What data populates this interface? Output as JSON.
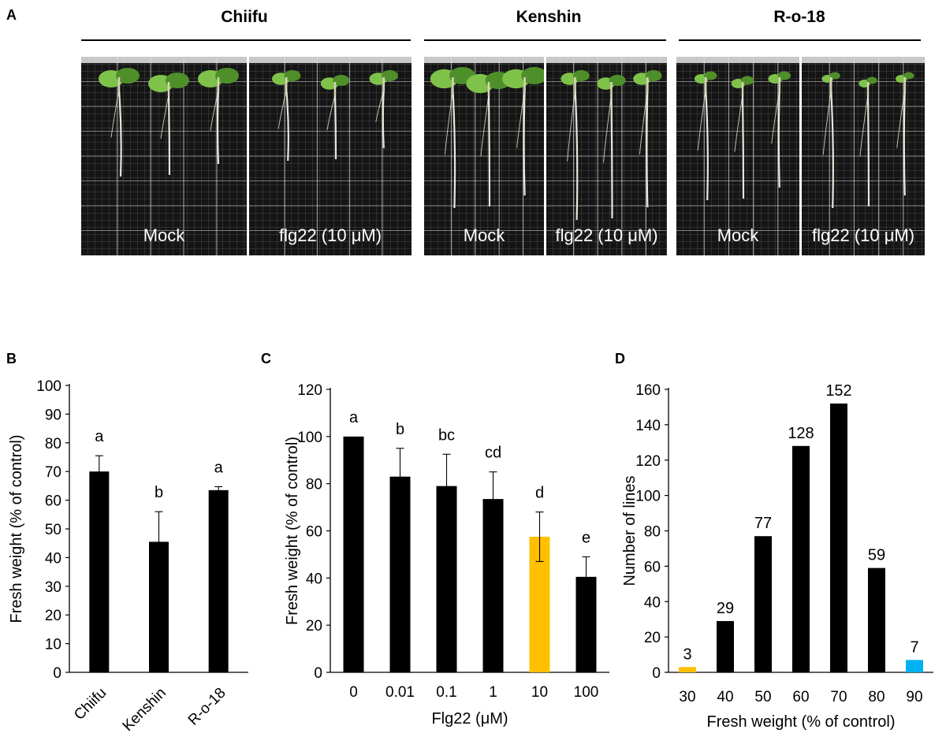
{
  "figure": {
    "panel_a": {
      "label": "A",
      "cultivars": [
        "Chiifu",
        "Kenshin",
        "R-o-18"
      ],
      "treatments": [
        "Mock",
        "flg22 (10 μM)",
        "Mock",
        "flg22 (10 μM)",
        "Mock",
        "flg22 (10 μM)"
      ],
      "colors": {
        "leaf": "#7fc24a",
        "leaf_dark": "#4f8f2a",
        "stem": "#d8d2b6",
        "root": "#e9e6da",
        "board": "#151515",
        "line": "#cfcfcf"
      }
    },
    "colors": {
      "bar": "#000000",
      "highlight_orange": "#ffc000",
      "highlight_blue": "#00b0f0"
    }
  },
  "chart_data": [
    {
      "panel": "B",
      "type": "bar",
      "categories": [
        "Chiifu",
        "Kenshin",
        "R-o-18"
      ],
      "values": [
        70,
        45.5,
        63.5
      ],
      "errors": [
        5.5,
        10.5,
        1.2
      ],
      "letters": [
        "a",
        "b",
        "a"
      ],
      "xlabel": "",
      "ylabel": "Fresh weight (% of control)",
      "ylim": [
        0,
        100
      ],
      "yticks": [
        0,
        10,
        20,
        30,
        40,
        50,
        60,
        70,
        80,
        90,
        100
      ],
      "bar_colors": [
        "#000000",
        "#000000",
        "#000000"
      ]
    },
    {
      "panel": "C",
      "type": "bar",
      "categories": [
        "0",
        "0.01",
        "0.1",
        "1",
        "10",
        "100"
      ],
      "values": [
        100,
        83,
        79,
        73.5,
        57.5,
        40.5
      ],
      "errors": [
        0,
        12,
        13.5,
        11.5,
        10.5,
        8.5
      ],
      "letters": [
        "a",
        "b",
        "bc",
        "cd",
        "d",
        "e"
      ],
      "xlabel": "Flg22 (μM)",
      "ylabel": "Fresh weight (% of control)",
      "ylim": [
        0,
        120
      ],
      "yticks": [
        0,
        20,
        40,
        60,
        80,
        100,
        120
      ],
      "bar_colors": [
        "#000000",
        "#000000",
        "#000000",
        "#000000",
        "#ffc000",
        "#000000"
      ]
    },
    {
      "panel": "D",
      "type": "bar",
      "categories": [
        "30",
        "40",
        "50",
        "60",
        "70",
        "80",
        "90"
      ],
      "values": [
        3,
        29,
        77,
        128,
        152,
        59,
        7
      ],
      "data_labels": [
        "3",
        "29",
        "77",
        "128",
        "152",
        "59",
        "7"
      ],
      "xlabel": "Fresh weight  (% of control)",
      "ylabel": "Number  of lines",
      "ylim": [
        0,
        160
      ],
      "yticks": [
        0,
        20,
        40,
        60,
        80,
        100,
        120,
        140,
        160
      ],
      "bar_colors": [
        "#ffc000",
        "#000000",
        "#000000",
        "#000000",
        "#000000",
        "#000000",
        "#00b0f0"
      ]
    }
  ]
}
